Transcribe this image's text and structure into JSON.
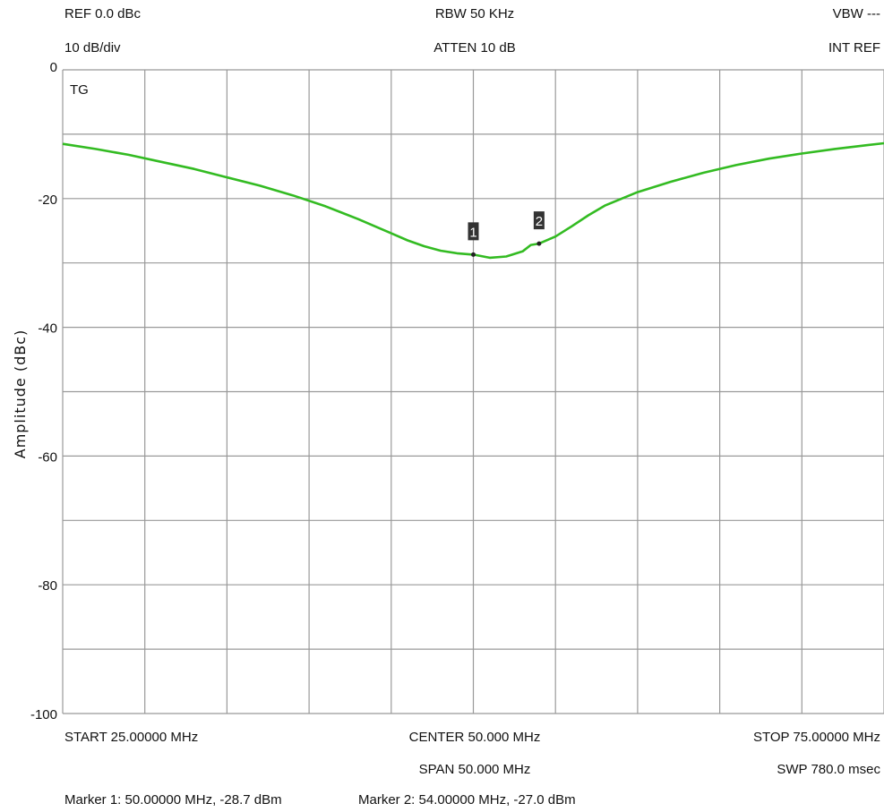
{
  "header": {
    "ref": "REF 0.0 dBc",
    "scale": "10 dB/div",
    "rbw": "RBW 50 KHz",
    "atten": "ATTEN 10 dB",
    "vbw": "VBW ---",
    "int_ref": "INT REF",
    "trace_label": "TG"
  },
  "footer": {
    "start": "START 25.00000 MHz",
    "center": "CENTER 50.000 MHz",
    "span": "SPAN 50.000 MHz",
    "stop": "STOP 75.00000 MHz",
    "sweep": "SWP 780.0 msec",
    "marker1": "Marker 1: 50.00000 MHz, -28.7 dBm",
    "marker2": "Marker 2: 54.00000 MHz, -27.0 dBm"
  },
  "colors": {
    "trace": "#33bb22",
    "grid": "#999999",
    "marker_box": "#333333"
  },
  "chart_data": {
    "type": "line",
    "title": "",
    "xlabel": "",
    "ylabel": "Amplitude (dBc)",
    "xlim": [
      25,
      75
    ],
    "ylim": [
      -100,
      0
    ],
    "grid": true,
    "y_ticks": [
      0,
      -20,
      -40,
      -60,
      -80,
      -100
    ],
    "y_tick_labels": [
      "0",
      "-20",
      "-40",
      "-60",
      "-80",
      "-100"
    ],
    "series": [
      {
        "x": [
          25,
          27,
          29,
          31,
          33,
          35,
          37,
          39,
          41,
          43,
          45,
          46,
          47,
          48,
          49,
          50,
          51,
          52,
          53,
          53.5,
          54,
          55,
          56,
          57,
          58,
          60,
          62,
          64,
          66,
          68,
          70,
          72,
          74,
          75
        ],
        "values": [
          -11.5,
          -12.3,
          -13.2,
          -14.3,
          -15.4,
          -16.7,
          -18.0,
          -19.5,
          -21.2,
          -23.2,
          -25.4,
          -26.5,
          -27.4,
          -28.1,
          -28.5,
          -28.7,
          -29.2,
          -29.0,
          -28.2,
          -27.2,
          -27.0,
          -25.9,
          -24.3,
          -22.6,
          -21.1,
          -19.0,
          -17.4,
          -16.0,
          -14.8,
          -13.8,
          -13.0,
          -12.3,
          -11.7,
          -11.4
        ]
      }
    ],
    "markers": [
      {
        "label": "1",
        "x": 50,
        "y": -28.7
      },
      {
        "label": "2",
        "x": 54,
        "y": -27.0
      }
    ]
  }
}
